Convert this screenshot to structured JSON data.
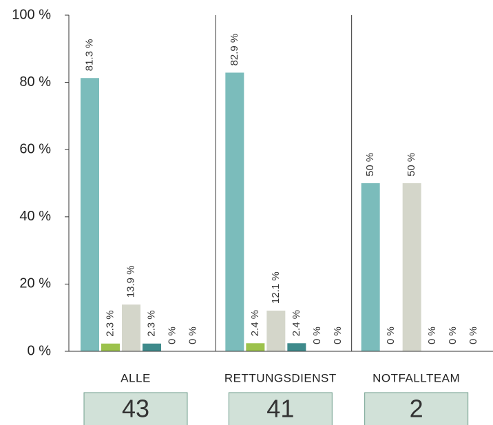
{
  "chart_data": {
    "type": "bar",
    "categories": [
      "ALLE",
      "RETTUNGSDIENST",
      "NOTFALLTEAM"
    ],
    "series": [
      {
        "color": "#7bbcbb",
        "values": [
          81.3,
          82.9,
          50
        ],
        "value_labels": [
          "81.3 %",
          "82.9 %",
          "50 %"
        ]
      },
      {
        "color": "#9cc24c",
        "values": [
          2.3,
          2.4,
          0
        ],
        "value_labels": [
          "2.3 %",
          "2.4 %",
          "0 %"
        ]
      },
      {
        "color": "#d4d6ca",
        "values": [
          13.9,
          12.1,
          50
        ],
        "value_labels": [
          "13.9 %",
          "12.1 %",
          "50 %"
        ]
      },
      {
        "color": "#3e8a8b",
        "values": [
          2.3,
          2.4,
          0
        ],
        "value_labels": [
          "2.3 %",
          "2.4 %",
          "0 %"
        ]
      },
      {
        "color": "#a9b8b0",
        "values": [
          0,
          0,
          0
        ],
        "value_labels": [
          "0 %",
          "0 %",
          "0 %"
        ]
      },
      {
        "color": "#5f6f6a",
        "values": [
          0,
          0,
          0
        ],
        "value_labels": [
          "0 %",
          "0 %",
          "0 %"
        ]
      }
    ],
    "totals": [
      43,
      41,
      2
    ],
    "ylim": [
      0,
      100
    ],
    "yticks": [
      {
        "value": 0,
        "label": "0 %"
      },
      {
        "value": 20,
        "label": "20 %"
      },
      {
        "value": 40,
        "label": "40 %"
      },
      {
        "value": 60,
        "label": "60 %"
      },
      {
        "value": 80,
        "label": "80 %"
      },
      {
        "value": 100,
        "label": "100 %"
      }
    ]
  }
}
